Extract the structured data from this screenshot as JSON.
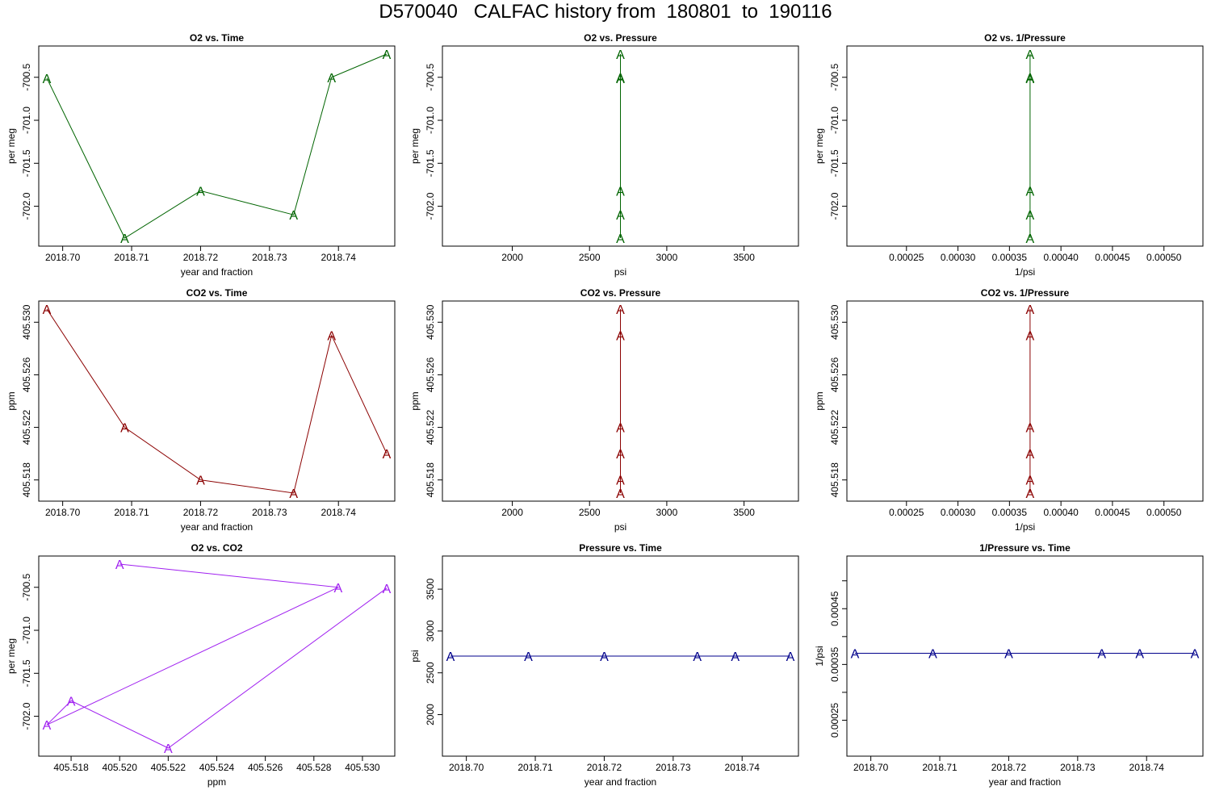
{
  "figure_title": "D570040   CALFAC history from  180801  to  190116",
  "colors": {
    "o2": "#006400",
    "co2": "#8b0000",
    "o2co2": "#a020f0",
    "pressure": "#00008b"
  },
  "chart_data": [
    {
      "type": "line",
      "title": "O2 vs. Time",
      "xlabel": "year and fraction",
      "ylabel": "per meg",
      "color_key": "o2",
      "marker": "A",
      "x": [
        2018.6977,
        2018.709,
        2018.72,
        2018.7335,
        2018.739,
        2018.747
      ],
      "y": [
        -700.51,
        -702.37,
        -701.82,
        -702.1,
        -700.5,
        -700.23
      ],
      "xlim": [
        2018.6977,
        2018.747
      ],
      "ylim": [
        -702.37,
        -700.23
      ],
      "xticks": [
        2018.7,
        2018.71,
        2018.72,
        2018.73,
        2018.74
      ],
      "xtick_labels": [
        "2018.70",
        "2018.71",
        "2018.72",
        "2018.73",
        "2018.74"
      ],
      "yticks": [
        -702.0,
        -701.5,
        -701.0,
        -700.5
      ],
      "ytick_labels": [
        "-702.0",
        "-701.5",
        "-701.0",
        "-700.5"
      ]
    },
    {
      "type": "line",
      "title": "O2 vs. Pressure",
      "xlabel": "psi",
      "ylabel": "per meg",
      "color_key": "o2",
      "marker": "A",
      "x": [
        2700,
        2700,
        2700,
        2700,
        2700,
        2700
      ],
      "y": [
        -700.51,
        -702.37,
        -701.82,
        -702.1,
        -700.5,
        -700.23
      ],
      "xlim": [
        1600,
        3800
      ],
      "ylim": [
        -702.37,
        -700.23
      ],
      "xticks": [
        2000,
        2500,
        3000,
        3500
      ],
      "xtick_labels": [
        "2000",
        "2500",
        "3000",
        "3500"
      ],
      "yticks": [
        -702.0,
        -701.5,
        -701.0,
        -700.5
      ],
      "ytick_labels": [
        "-702.0",
        "-701.5",
        "-701.0",
        "-700.5"
      ]
    },
    {
      "type": "line",
      "title": "O2 vs. 1/Pressure",
      "xlabel": "1/psi",
      "ylabel": "per meg",
      "color_key": "o2",
      "marker": "A",
      "x": [
        0.00037,
        0.00037,
        0.00037,
        0.00037,
        0.00037,
        0.00037
      ],
      "y": [
        -700.51,
        -702.37,
        -701.82,
        -702.1,
        -700.5,
        -700.23
      ],
      "xlim": [
        0.0002,
        0.00053
      ],
      "ylim": [
        -702.37,
        -700.23
      ],
      "xticks": [
        0.00025,
        0.0003,
        0.00035,
        0.0004,
        0.00045,
        0.0005
      ],
      "xtick_labels": [
        "0.00025",
        "0.00030",
        "0.00035",
        "0.00040",
        "0.00045",
        "0.00050"
      ],
      "yticks": [
        -702.0,
        -701.5,
        -701.0,
        -700.5
      ],
      "ytick_labels": [
        "-702.0",
        "-701.5",
        "-701.0",
        "-700.5"
      ]
    },
    {
      "type": "line",
      "title": "CO2 vs. Time",
      "xlabel": "year and fraction",
      "ylabel": "ppm",
      "color_key": "co2",
      "marker": "A",
      "x": [
        2018.6977,
        2018.709,
        2018.72,
        2018.7335,
        2018.739,
        2018.747
      ],
      "y": [
        405.531,
        405.522,
        405.518,
        405.517,
        405.529,
        405.52
      ],
      "xlim": [
        2018.6977,
        2018.747
      ],
      "ylim": [
        405.517,
        405.531
      ],
      "xticks": [
        2018.7,
        2018.71,
        2018.72,
        2018.73,
        2018.74
      ],
      "xtick_labels": [
        "2018.70",
        "2018.71",
        "2018.72",
        "2018.73",
        "2018.74"
      ],
      "yticks": [
        405.518,
        405.522,
        405.526,
        405.53
      ],
      "ytick_labels": [
        "405.518",
        "405.522",
        "405.526",
        "405.530"
      ]
    },
    {
      "type": "line",
      "title": "CO2 vs. Pressure",
      "xlabel": "psi",
      "ylabel": "ppm",
      "color_key": "co2",
      "marker": "A",
      "x": [
        2700,
        2700,
        2700,
        2700,
        2700,
        2700
      ],
      "y": [
        405.531,
        405.522,
        405.518,
        405.517,
        405.529,
        405.52
      ],
      "xlim": [
        1600,
        3800
      ],
      "ylim": [
        405.517,
        405.531
      ],
      "xticks": [
        2000,
        2500,
        3000,
        3500
      ],
      "xtick_labels": [
        "2000",
        "2500",
        "3000",
        "3500"
      ],
      "yticks": [
        405.518,
        405.522,
        405.526,
        405.53
      ],
      "ytick_labels": [
        "405.518",
        "405.522",
        "405.526",
        "405.530"
      ]
    },
    {
      "type": "line",
      "title": "CO2 vs. 1/Pressure",
      "xlabel": "1/psi",
      "ylabel": "ppm",
      "color_key": "co2",
      "marker": "A",
      "x": [
        0.00037,
        0.00037,
        0.00037,
        0.00037,
        0.00037,
        0.00037
      ],
      "y": [
        405.531,
        405.522,
        405.518,
        405.517,
        405.529,
        405.52
      ],
      "xlim": [
        0.0002,
        0.00053
      ],
      "ylim": [
        405.517,
        405.531
      ],
      "xticks": [
        0.00025,
        0.0003,
        0.00035,
        0.0004,
        0.00045,
        0.0005
      ],
      "xtick_labels": [
        "0.00025",
        "0.00030",
        "0.00035",
        "0.00040",
        "0.00045",
        "0.00050"
      ],
      "yticks": [
        405.518,
        405.522,
        405.526,
        405.53
      ],
      "ytick_labels": [
        "405.518",
        "405.522",
        "405.526",
        "405.530"
      ]
    },
    {
      "type": "line",
      "title": "O2 vs. CO2",
      "xlabel": "ppm",
      "ylabel": "per meg",
      "color_key": "o2co2",
      "marker": "A",
      "x": [
        405.52,
        405.529,
        405.517,
        405.518,
        405.522,
        405.531
      ],
      "y": [
        -700.23,
        -700.5,
        -702.1,
        -701.82,
        -702.37,
        -700.51
      ],
      "xlim": [
        405.517,
        405.531
      ],
      "ylim": [
        -702.37,
        -700.23
      ],
      "xticks": [
        405.518,
        405.52,
        405.522,
        405.524,
        405.526,
        405.528,
        405.53
      ],
      "xtick_labels": [
        "405.518",
        "405.520",
        "405.522",
        "405.524",
        "405.526",
        "405.528",
        "405.530"
      ],
      "yticks": [
        -702.0,
        -701.5,
        -701.0,
        -700.5
      ],
      "ytick_labels": [
        "-702.0",
        "-701.5",
        "-701.0",
        "-700.5"
      ]
    },
    {
      "type": "line",
      "title": "Pressure vs. Time",
      "xlabel": "year and fraction",
      "ylabel": "psi",
      "color_key": "pressure",
      "marker": "A",
      "x": [
        2018.6977,
        2018.709,
        2018.72,
        2018.7335,
        2018.739,
        2018.747
      ],
      "y": [
        2700,
        2700,
        2700,
        2700,
        2700,
        2700
      ],
      "xlim": [
        2018.6977,
        2018.747
      ],
      "ylim": [
        1600,
        3800
      ],
      "xticks": [
        2018.7,
        2018.71,
        2018.72,
        2018.73,
        2018.74
      ],
      "xtick_labels": [
        "2018.70",
        "2018.71",
        "2018.72",
        "2018.73",
        "2018.74"
      ],
      "yticks": [
        2000,
        2500,
        3000,
        3500
      ],
      "ytick_labels": [
        "2000",
        "2500",
        "3000",
        "3500"
      ]
    },
    {
      "type": "line",
      "title": "1/Pressure vs. Time",
      "xlabel": "year and fraction",
      "ylabel": "1/psi",
      "color_key": "pressure",
      "marker": "A",
      "x": [
        2018.6977,
        2018.709,
        2018.72,
        2018.7335,
        2018.739,
        2018.747
      ],
      "y": [
        0.00037,
        0.00037,
        0.00037,
        0.00037,
        0.00037,
        0.00037
      ],
      "xlim": [
        2018.6977,
        2018.747
      ],
      "ylim": [
        0.0002,
        0.00053
      ],
      "xticks": [
        2018.7,
        2018.71,
        2018.72,
        2018.73,
        2018.74
      ],
      "xtick_labels": [
        "2018.70",
        "2018.71",
        "2018.72",
        "2018.73",
        "2018.74"
      ],
      "yticks": [
        0.00025,
        0.0003,
        0.00035,
        0.0004,
        0.00045,
        0.0005
      ],
      "ytick_labels": [
        "0.00025",
        "",
        "0.00035",
        "",
        "0.00045",
        ""
      ]
    }
  ]
}
